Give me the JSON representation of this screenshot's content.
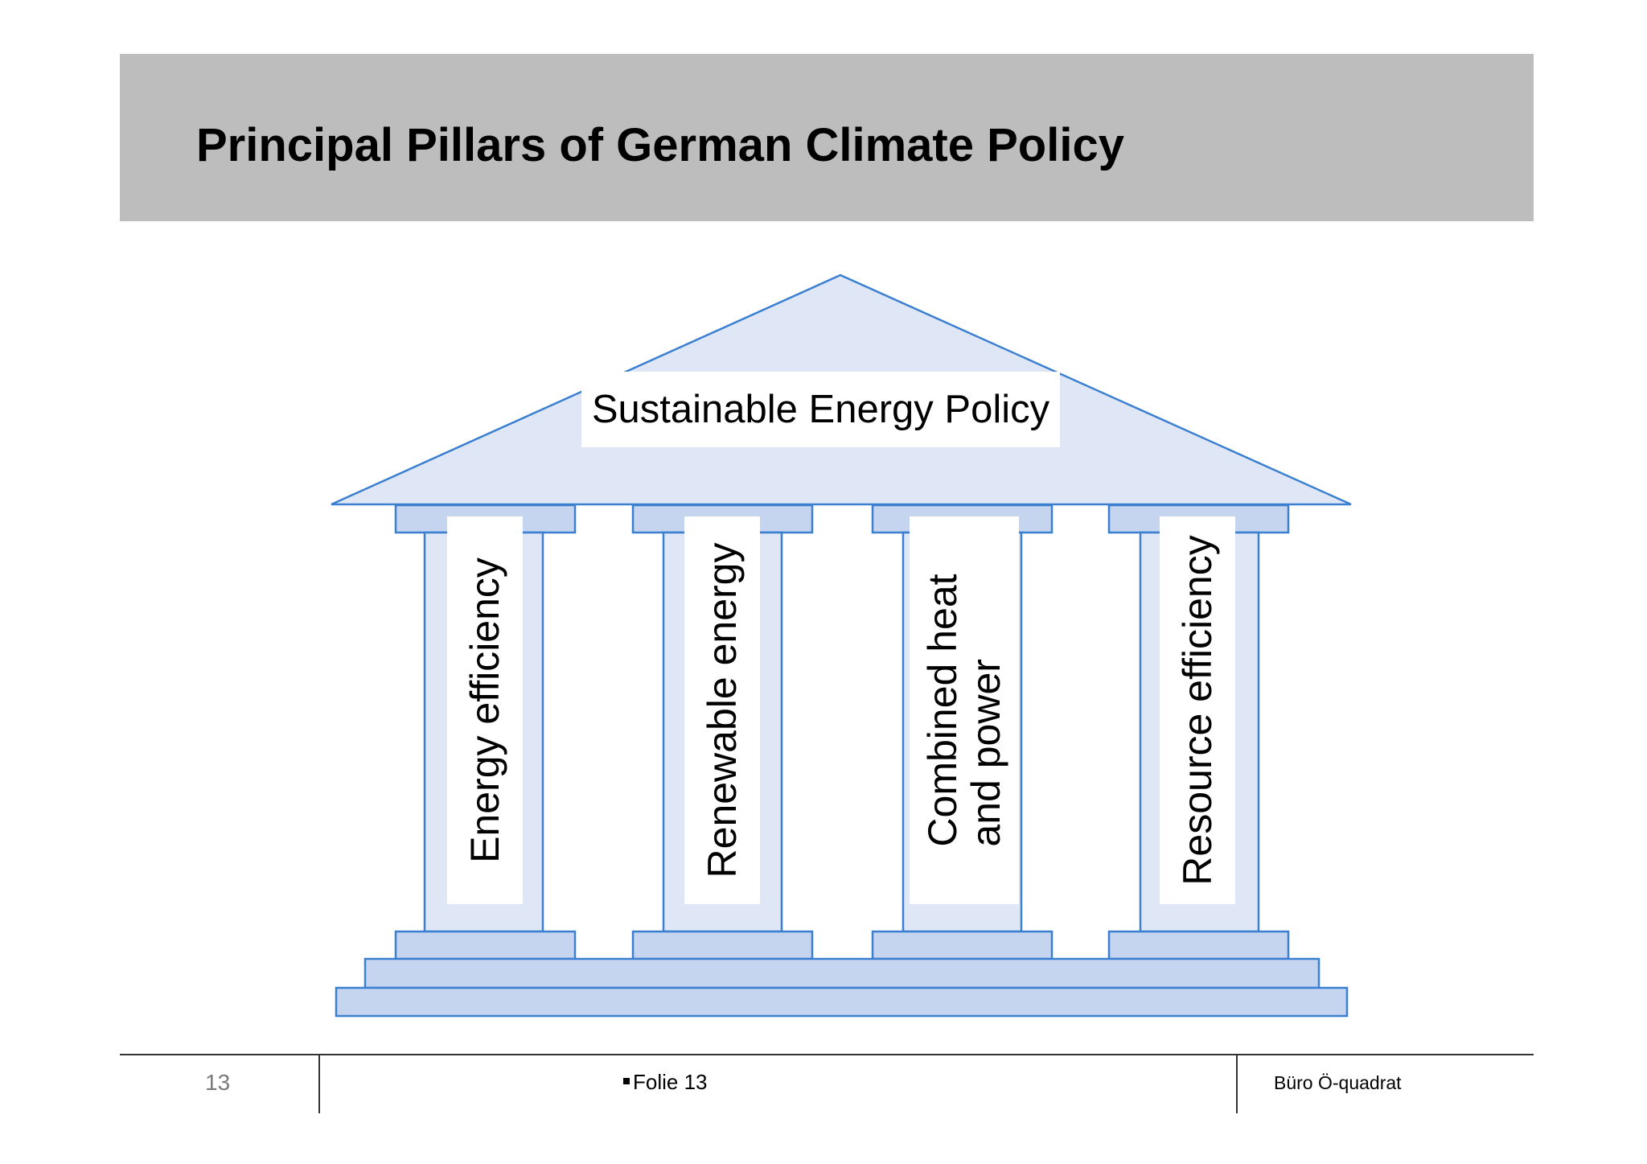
{
  "slide": {
    "title": "Principal Pillars of German Climate Policy"
  },
  "diagram": {
    "roof_label": "Sustainable Energy Policy",
    "pillars": [
      {
        "label": "Energy efficiency"
      },
      {
        "label": "Renewable energy"
      },
      {
        "label": "Combined heat\nand power"
      },
      {
        "label": "Resource efficiency"
      }
    ],
    "colors": {
      "fill_light": "#dfe7f6",
      "fill_mid": "#c5d5f0",
      "stroke": "#3a7fd0"
    }
  },
  "footer": {
    "page_number": "13",
    "center_text": "Folie 13",
    "right_text": "Büro Ö-quadrat"
  }
}
